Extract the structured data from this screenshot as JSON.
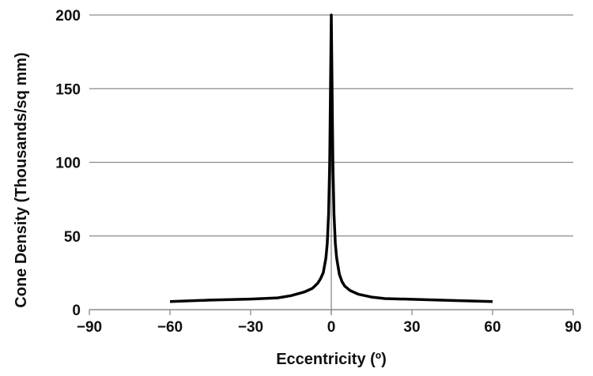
{
  "chart_data": {
    "type": "line",
    "title": "",
    "xlabel": "Eccentricity (º)",
    "ylabel": "Cone Density (Thousands/sq mm)",
    "xlim": [
      -90,
      90
    ],
    "ylim": [
      0,
      200
    ],
    "xticks": [
      "−90",
      "−60",
      "−30",
      "0",
      "30",
      "60",
      "90"
    ],
    "xtick_values": [
      -90,
      -60,
      -30,
      0,
      30,
      60,
      90
    ],
    "yticks": [
      "0",
      "50",
      "100",
      "150",
      "200"
    ],
    "ytick_values": [
      0,
      50,
      100,
      150,
      200
    ],
    "grid": "horizontal",
    "series": [
      {
        "name": "Cone density",
        "color": "#000000",
        "x": [
          -60,
          -45,
          -30,
          -20,
          -15,
          -10,
          -7,
          -5,
          -4,
          -3,
          -2,
          -1.5,
          -1,
          -0.6,
          -0.3,
          0,
          0.3,
          0.6,
          1,
          1.5,
          2,
          3,
          4,
          5,
          7,
          10,
          15,
          20,
          30,
          45,
          60
        ],
        "y": [
          5.5,
          6.5,
          7.2,
          8,
          9.5,
          12,
          14.5,
          18,
          21,
          25,
          35,
          45,
          65,
          100,
          150,
          200,
          150,
          100,
          65,
          45,
          35,
          24,
          19,
          16,
          13,
          10.5,
          8.5,
          7.5,
          7,
          6.2,
          5.5
        ]
      }
    ]
  }
}
